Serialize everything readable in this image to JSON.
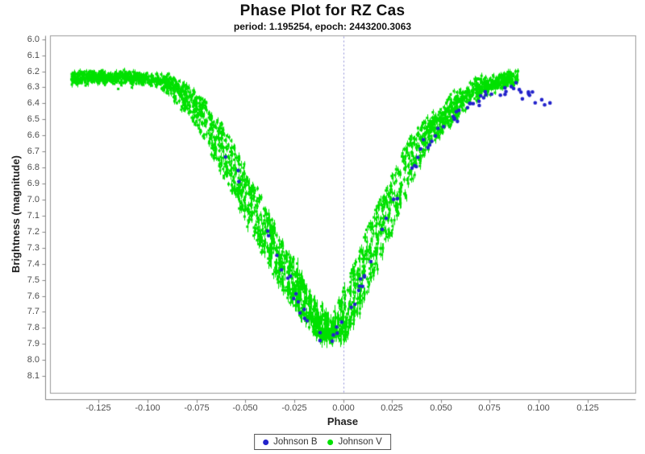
{
  "chart_data": {
    "type": "scatter",
    "title": "Phase Plot for RZ Cas",
    "subtitle": "period: 1.195254, epoch: 2443200.3063",
    "xlabel": "Phase",
    "ylabel": "Brightness (magnitude)",
    "grid": false,
    "background_color": "#ffffff",
    "x_axis": {
      "min": -0.1497,
      "max": 0.1497,
      "ticks": [
        -0.125,
        -0.1,
        -0.075,
        -0.05,
        -0.025,
        0.0,
        0.025,
        0.05,
        0.075,
        0.1,
        0.125
      ],
      "tick_labels": [
        "-0.125",
        "-0.100",
        "-0.075",
        "-0.050",
        "-0.025",
        "0.000",
        "0.025",
        "0.050",
        "0.075",
        "0.100",
        "0.125"
      ]
    },
    "y_axis": {
      "min": 5.979,
      "max": 8.207,
      "inverted": true,
      "ticks": [
        6.0,
        6.1,
        6.2,
        6.3,
        6.4,
        6.5,
        6.6,
        6.7,
        6.8,
        6.9,
        7.0,
        7.1,
        7.2,
        7.3,
        7.4,
        7.5,
        7.6,
        7.7,
        7.8,
        7.9,
        8.0,
        8.1
      ],
      "tick_labels": [
        "6.0",
        "6.1",
        "6.2",
        "6.3",
        "6.4",
        "6.5",
        "6.6",
        "6.7",
        "6.8",
        "6.9",
        "7.0",
        "7.1",
        "7.2",
        "7.3",
        "7.4",
        "7.5",
        "7.6",
        "7.7",
        "7.8",
        "7.9",
        "8.0",
        "8.1"
      ]
    },
    "zero_line": {
      "phase": 0,
      "color": "#8e8ed9",
      "dash": [
        2,
        3
      ]
    },
    "legend": {
      "position": "bottom-center",
      "entries": [
        {
          "label": "Johnson B",
          "color": "#2323cb",
          "marker": "circle"
        },
        {
          "label": "Johnson V",
          "color": "#00e100",
          "marker": "circle"
        }
      ]
    },
    "seed": 1234567,
    "series": [
      {
        "name": "Johnson B",
        "marker": "circle",
        "color": "#2323cb",
        "radius": 2.3,
        "scatter_mag": 0.055,
        "segments": [
          {
            "phase_range": [
              -0.065,
              -0.02
            ],
            "n": 13
          },
          {
            "phase_range": [
              -0.02,
              0.012
            ],
            "n": 18
          },
          {
            "phase_range": [
              0.012,
              0.047
            ],
            "n": 14
          },
          {
            "phase_range": [
              0.047,
              0.106
            ],
            "n": 38
          }
        ],
        "curve": [
          [
            -0.065,
            6.65
          ],
          [
            -0.057,
            6.78
          ],
          [
            -0.049,
            6.95
          ],
          [
            -0.041,
            7.15
          ],
          [
            -0.033,
            7.38
          ],
          [
            -0.025,
            7.58
          ],
          [
            -0.018,
            7.74
          ],
          [
            -0.012,
            7.86
          ],
          [
            -0.007,
            7.9
          ],
          [
            -0.002,
            7.8
          ],
          [
            0.003,
            7.68
          ],
          [
            0.008,
            7.57
          ],
          [
            0.014,
            7.4
          ],
          [
            0.02,
            7.2
          ],
          [
            0.026,
            7.0
          ],
          [
            0.033,
            6.85
          ],
          [
            0.04,
            6.72
          ],
          [
            0.047,
            6.59
          ],
          [
            0.054,
            6.5
          ],
          [
            0.061,
            6.44
          ],
          [
            0.069,
            6.39
          ],
          [
            0.077,
            6.34
          ],
          [
            0.085,
            6.31
          ],
          [
            0.093,
            6.32
          ],
          [
            0.1,
            6.37
          ],
          [
            0.106,
            6.4
          ]
        ]
      },
      {
        "name": "Johnson V",
        "marker": "square",
        "color": "#00e100",
        "size": 3,
        "n": 2600,
        "scatter_mag": 0.04,
        "error_bar": true,
        "phase_range": [
          -0.139,
          0.0895
        ],
        "strand_phase_offsets": [
          -0.0052,
          -0.0026,
          0,
          0.0026,
          0.0052
        ],
        "outliers": [
          [
            -0.115,
            6.31
          ]
        ],
        "curve": [
          [
            -0.139,
            6.24
          ],
          [
            -0.125,
            6.24
          ],
          [
            -0.11,
            6.24
          ],
          [
            -0.1,
            6.25
          ],
          [
            -0.092,
            6.27
          ],
          [
            -0.084,
            6.32
          ],
          [
            -0.076,
            6.41
          ],
          [
            -0.068,
            6.54
          ],
          [
            -0.061,
            6.7
          ],
          [
            -0.054,
            6.87
          ],
          [
            -0.047,
            7.03
          ],
          [
            -0.04,
            7.2
          ],
          [
            -0.033,
            7.36
          ],
          [
            -0.026,
            7.52
          ],
          [
            -0.019,
            7.66
          ],
          [
            -0.013,
            7.76
          ],
          [
            -0.008,
            7.84
          ],
          [
            -0.005,
            7.86
          ],
          [
            -0.001,
            7.77
          ],
          [
            0.004,
            7.64
          ],
          [
            0.009,
            7.49
          ],
          [
            0.015,
            7.31
          ],
          [
            0.021,
            7.12
          ],
          [
            0.027,
            6.94
          ],
          [
            0.033,
            6.78
          ],
          [
            0.04,
            6.63
          ],
          [
            0.047,
            6.53
          ],
          [
            0.054,
            6.46
          ],
          [
            0.061,
            6.38
          ],
          [
            0.069,
            6.31
          ],
          [
            0.077,
            6.27
          ],
          [
            0.084,
            6.25
          ],
          [
            0.089,
            6.24
          ]
        ]
      }
    ]
  }
}
